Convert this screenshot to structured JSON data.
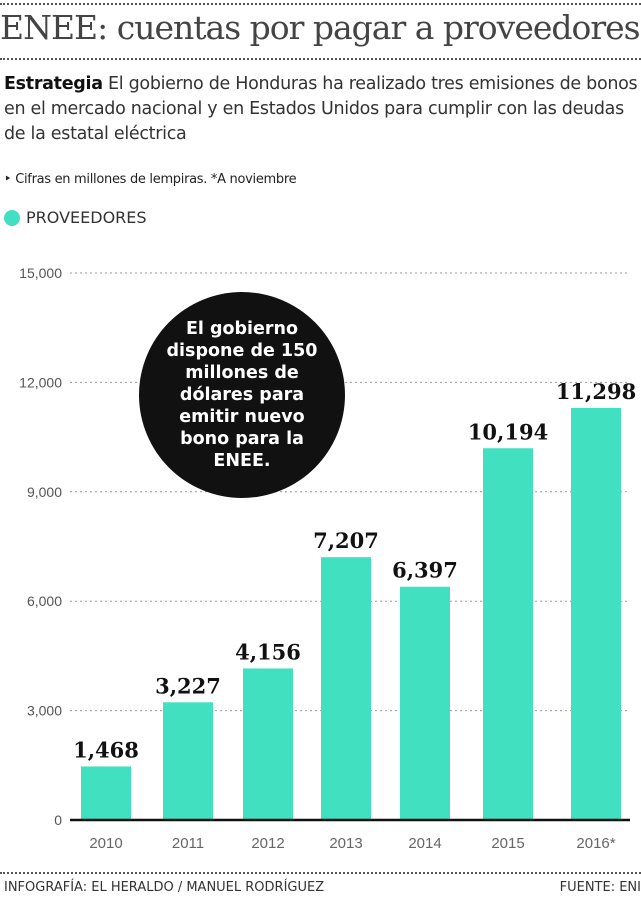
{
  "header": {
    "title": "ENEE: cuentas por pagar a proveedores",
    "intro_label": "Estrategia",
    "intro_text": "El gobierno de Honduras ha realizado tres emisiones de bonos en el mercado nacional y en Estados Unidos para cumplir con las deudas de la estatal eléctrica",
    "note": "‣ Cifras en millones de lempiras.  *A noviembre"
  },
  "callout": "El gobierno dispone de 150 millones de dólares para emitir nuevo bono para la ENEE.",
  "footer": {
    "credit": "INFOGRAFÍA: EL HERALDO / MANUEL RODRÍGUEZ",
    "source": "FUENTE: ENI"
  },
  "chart_data": {
    "type": "bar",
    "title": "ENEE: cuentas por pagar a proveedores",
    "categories": [
      "2010",
      "2011",
      "2012",
      "2013",
      "2014",
      "2015",
      "2016*"
    ],
    "series": [
      {
        "name": "PROVEEDORES",
        "values": [
          1468,
          3227,
          4156,
          7207,
          6397,
          10194,
          11298
        ],
        "color": "#40E0C0"
      }
    ],
    "data_labels": [
      "1,468",
      "3,227",
      "4,156",
      "7,207",
      "6,397",
      "10,194",
      "11,298"
    ],
    "yticks": [
      0,
      3000,
      6000,
      9000,
      12000,
      15000
    ],
    "ytick_labels": [
      "0",
      "3,000",
      "6,000",
      "9,000",
      "12,000",
      "15,000"
    ],
    "ylim": [
      0,
      15000
    ],
    "grid": true,
    "legend": "top-left"
  }
}
